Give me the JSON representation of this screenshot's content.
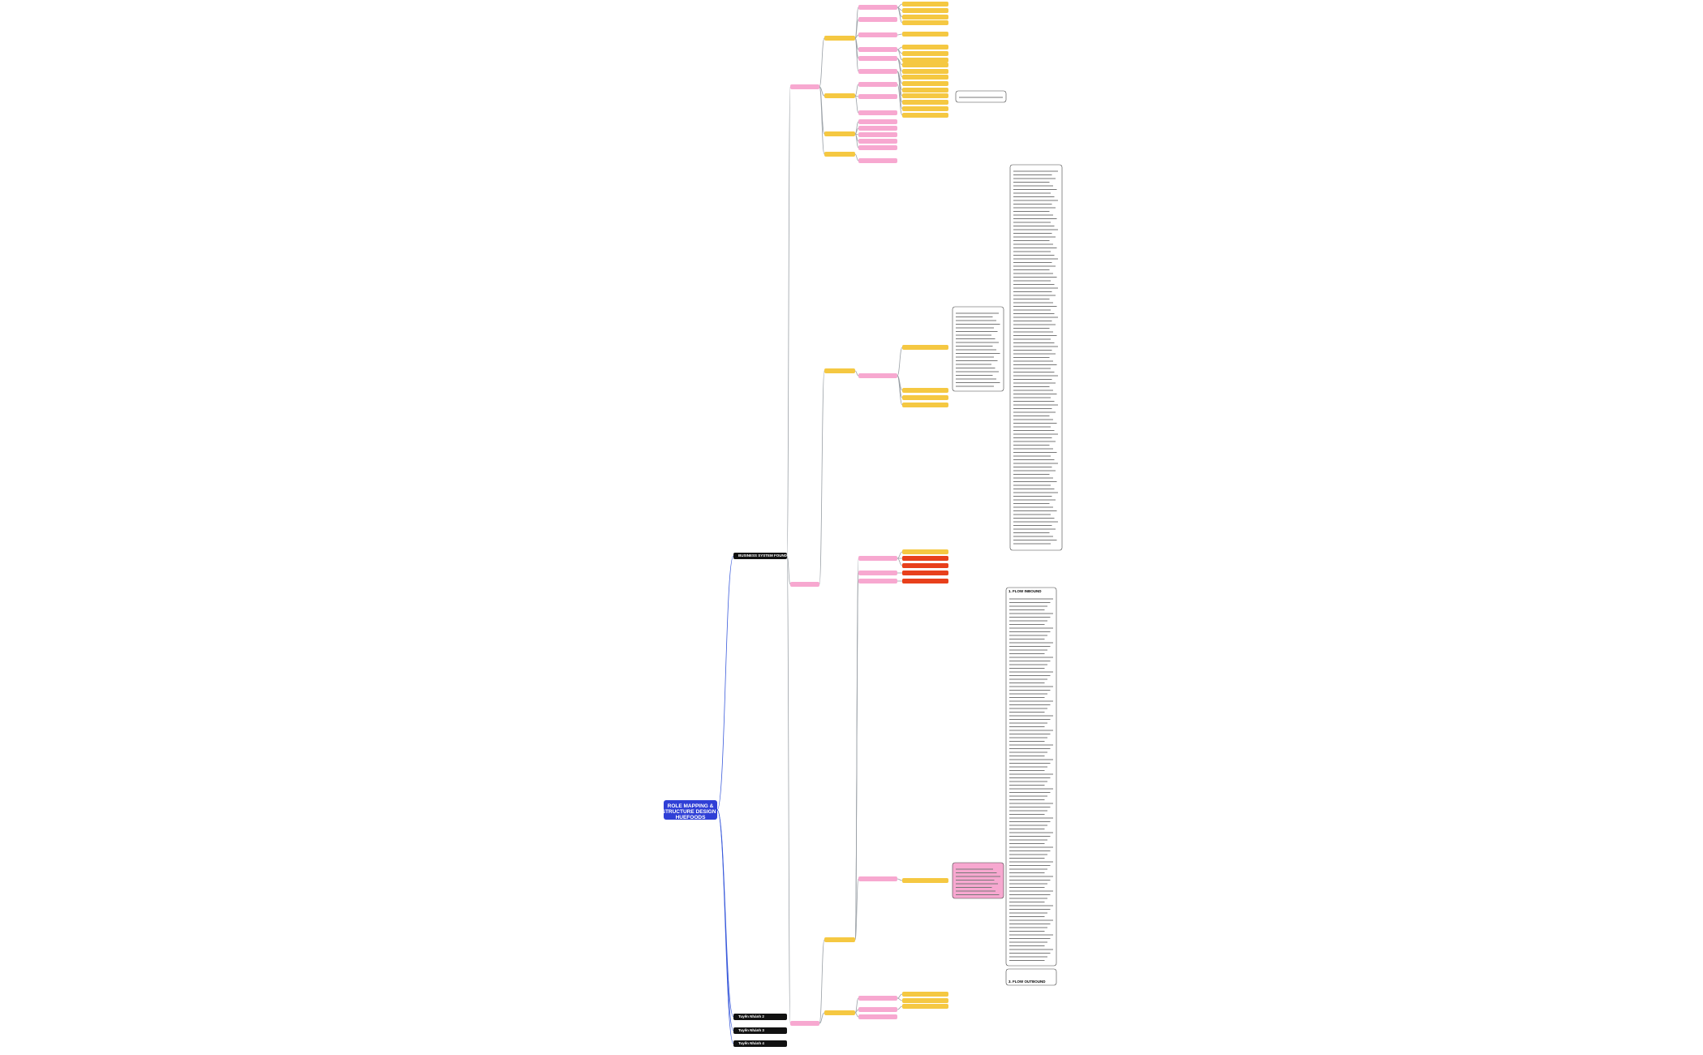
{
  "root": {
    "label": "ROLE MAPPING & STRUCTURE DESIGN - HUEFOODS"
  },
  "branches": [
    {
      "label": "BUSINESS SYSTEM FOUNDATION"
    },
    {
      "label": "Tuyến Nhánh 2"
    },
    {
      "label": "Tuyến Nhánh 3"
    },
    {
      "label": "Tuyến Nhánh 4"
    }
  ],
  "flows": [
    {
      "label": "1. FLOW INBOUND"
    },
    {
      "label": "3. FLOW OUTBOUND"
    }
  ]
}
